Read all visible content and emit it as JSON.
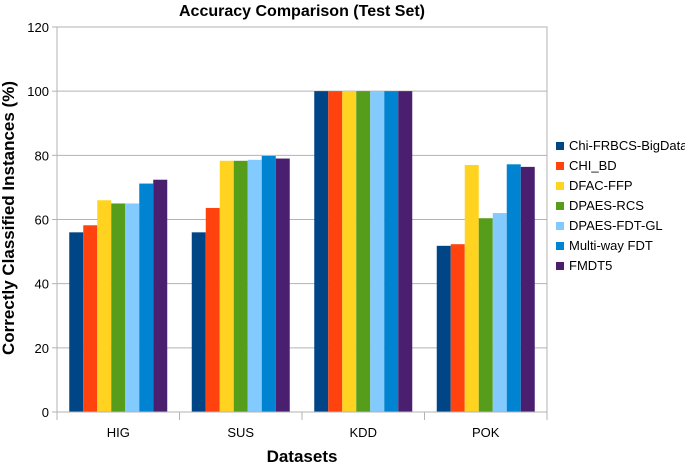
{
  "chart_data": {
    "type": "bar",
    "title": "Accuracy Comparison (Test Set)",
    "xlabel": "Datasets",
    "ylabel": "Correctly Classified Instances (%)",
    "ylim": [
      0,
      120
    ],
    "yticks": [
      0,
      20,
      40,
      60,
      80,
      100,
      120
    ],
    "grid": true,
    "legend_position": "right",
    "categories": [
      "HIG",
      "SUS",
      "KDD",
      "POK"
    ],
    "series": [
      {
        "name": "Chi-FRBCS-BigData",
        "color": "#004586",
        "values": [
          56,
          56,
          100,
          51.8
        ]
      },
      {
        "name": "CHI_BD",
        "color": "#ff420e",
        "values": [
          58.2,
          63.6,
          100,
          52.3
        ]
      },
      {
        "name": "DFAC-FFP",
        "color": "#ffd320",
        "values": [
          66,
          78.3,
          100,
          77
        ]
      },
      {
        "name": "DPAES-RCS",
        "color": "#579d1c",
        "values": [
          65,
          78.3,
          100,
          60.4
        ]
      },
      {
        "name": "DPAES-FDT-GL",
        "color": "#83caff",
        "values": [
          65,
          78.6,
          100,
          62
        ]
      },
      {
        "name": "Multi-way FDT",
        "color": "#0084d1",
        "values": [
          71.2,
          79.8,
          100,
          77.2
        ]
      },
      {
        "name": "FMDT5",
        "color": "#4b1f6f",
        "values": [
          72.4,
          79,
          100,
          76.4
        ]
      }
    ]
  }
}
